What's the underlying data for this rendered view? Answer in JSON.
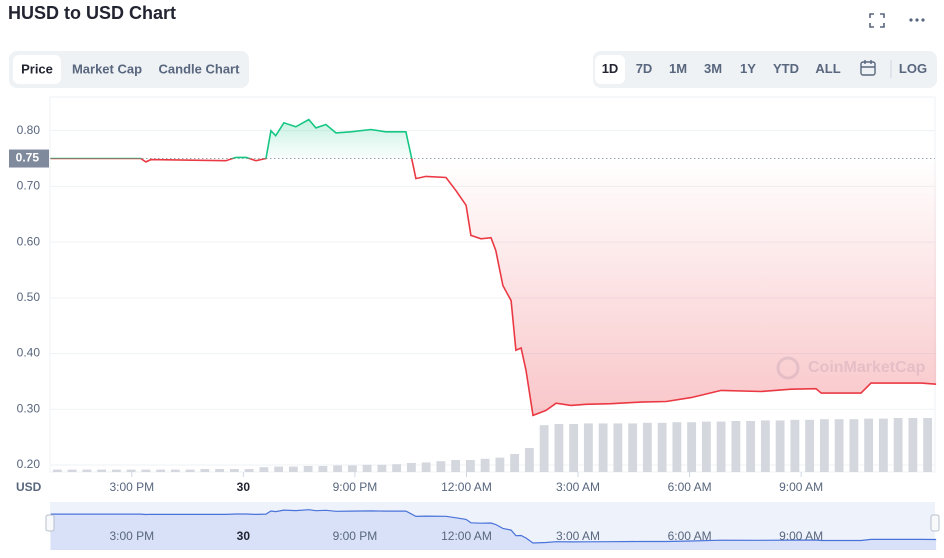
{
  "toolbar": {
    "tabs": [
      "Price",
      "Market Cap",
      "Candle Chart"
    ],
    "active_tab": 0,
    "ranges": [
      "1D",
      "7D",
      "1M",
      "3M",
      "1Y",
      "YTD",
      "ALL"
    ],
    "active_range": 0,
    "log_button": "LOG"
  },
  "chart_data": {
    "type": "line",
    "title": "HUSD to USD Chart",
    "y_unit": "USD",
    "watermark": "CoinMarketCap",
    "current_price": {
      "value": 0.75,
      "label": "0.75"
    },
    "xlim": [
      12.8,
      36.6
    ],
    "xticks": [
      {
        "value": 15,
        "label": "3:00 PM"
      },
      {
        "value": 18,
        "label": "30"
      },
      {
        "value": 21,
        "label": "9:00 PM"
      },
      {
        "value": 24,
        "label": "12:00 AM"
      },
      {
        "value": 27,
        "label": "3:00 AM"
      },
      {
        "value": 30,
        "label": "6:00 AM"
      },
      {
        "value": 33,
        "label": "9:00 AM"
      }
    ],
    "ylim": [
      0.1875,
      0.855
    ],
    "yticks": [
      {
        "value": 0.2,
        "label": "0.20"
      },
      {
        "value": 0.3,
        "label": "0.30"
      },
      {
        "value": 0.4,
        "label": "0.40"
      },
      {
        "value": 0.5,
        "label": "0.50"
      },
      {
        "value": 0.6,
        "label": "0.60"
      },
      {
        "value": 0.7,
        "label": "0.70"
      },
      {
        "value": 0.8,
        "label": "0.80"
      }
    ],
    "grid": true,
    "series": [
      {
        "color_up": "#16c784",
        "color_down": "#ea3943",
        "x": [
          12.82,
          15.24,
          15.38,
          15.51,
          17.53,
          17.8,
          18.07,
          18.34,
          18.61,
          18.74,
          18.87,
          19.09,
          19.41,
          19.76,
          19.95,
          20.22,
          20.49,
          20.89,
          21.43,
          21.83,
          22.37,
          22.51,
          22.64,
          22.91,
          23.45,
          23.72,
          23.99,
          24.12,
          24.39,
          24.66,
          24.79,
          24.98,
          25.2,
          25.33,
          25.47,
          25.6,
          25.79,
          26.14,
          26.41,
          26.81,
          27.21,
          27.89,
          28.69,
          29.37,
          30.04,
          30.85,
          31.92,
          32.73,
          33.4,
          33.54,
          34.61,
          34.88,
          36.23,
          36.63
        ],
        "values": [
          0.75,
          0.75,
          0.744,
          0.748,
          0.746,
          0.752,
          0.752,
          0.746,
          0.75,
          0.8,
          0.791,
          0.814,
          0.807,
          0.82,
          0.805,
          0.811,
          0.796,
          0.798,
          0.802,
          0.798,
          0.798,
          0.755,
          0.714,
          0.718,
          0.716,
          0.692,
          0.666,
          0.612,
          0.606,
          0.608,
          0.585,
          0.522,
          0.495,
          0.406,
          0.41,
          0.37,
          0.289,
          0.298,
          0.311,
          0.307,
          0.309,
          0.31,
          0.313,
          0.314,
          0.321,
          0.334,
          0.332,
          0.336,
          0.337,
          0.329,
          0.329,
          0.347,
          0.347,
          0.345
        ]
      }
    ],
    "volume": {
      "color": "#d4d8de",
      "lim": [
        0,
        100
      ],
      "values": [
        4,
        4,
        4,
        4,
        4,
        4,
        4,
        4,
        4,
        4,
        5,
        5,
        5,
        5,
        8,
        9,
        9,
        10,
        10,
        11,
        11,
        12,
        12,
        13,
        15,
        16,
        18,
        20,
        20,
        22,
        24,
        30,
        40,
        78,
        80,
        80,
        81,
        81,
        81,
        81,
        82,
        82,
        83,
        83,
        84,
        84,
        85,
        85,
        86,
        86,
        87,
        87,
        88,
        88,
        88,
        89,
        89,
        90,
        90,
        90
      ]
    },
    "navigator_color": "#4a73d9"
  }
}
